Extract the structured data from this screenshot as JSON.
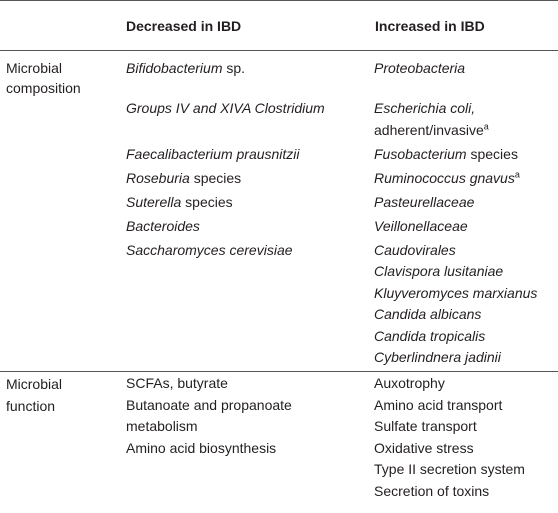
{
  "table": {
    "columns": [
      "Decreased in IBD",
      "Increased in IBD"
    ],
    "sections": [
      {
        "label": "Microbial composition",
        "rows": [
          {
            "decreased": [
              [
                {
                  "text": "Bifidobacterium",
                  "style": "italic"
                },
                {
                  "text": " sp.",
                  "style": "normal"
                }
              ]
            ],
            "increased": [
              [
                {
                  "text": "Proteobacteria",
                  "style": "italic"
                }
              ]
            ]
          },
          {
            "decreased": [
              [
                {
                  "text": "Groups IV and XIVA Clostridium",
                  "style": "italic"
                }
              ]
            ],
            "increased": [
              [
                {
                  "text": "Escherichia coli,",
                  "style": "italic"
                },
                {
                  "text": " adherent/invasive",
                  "style": "normal"
                },
                {
                  "text": "a",
                  "style": "sup"
                }
              ]
            ]
          },
          {
            "decreased": [
              [
                {
                  "text": "Faecalibacterium prausnitzii",
                  "style": "italic"
                }
              ]
            ],
            "increased": [
              [
                {
                  "text": "Fusobacterium",
                  "style": "italic"
                },
                {
                  "text": " species",
                  "style": "normal"
                }
              ]
            ]
          },
          {
            "decreased": [
              [
                {
                  "text": "Roseburia",
                  "style": "italic"
                },
                {
                  "text": " species",
                  "style": "normal"
                }
              ]
            ],
            "increased": [
              [
                {
                  "text": "Ruminococcus gnavus",
                  "style": "italic"
                },
                {
                  "text": "a",
                  "style": "sup"
                }
              ]
            ]
          },
          {
            "decreased": [
              [
                {
                  "text": "Suterella",
                  "style": "italic"
                },
                {
                  "text": " species",
                  "style": "normal"
                }
              ]
            ],
            "increased": [
              [
                {
                  "text": "Pasteurellaceae",
                  "style": "italic"
                }
              ]
            ]
          },
          {
            "decreased": [
              [
                {
                  "text": "Bacteroides",
                  "style": "italic"
                }
              ]
            ],
            "increased": [
              [
                {
                  "text": "Veillonellaceae",
                  "style": "italic"
                }
              ]
            ]
          },
          {
            "decreased": [
              [
                {
                  "text": "Saccharomyces cerevisiae",
                  "style": "italic"
                }
              ]
            ],
            "increased": [
              [
                {
                  "text": "Caudovirales",
                  "style": "italic"
                }
              ],
              [
                {
                  "text": "Clavispora lusitaniae",
                  "style": "italic"
                }
              ],
              [
                {
                  "text": "Kluyveromyces marxianus",
                  "style": "italic"
                }
              ],
              [
                {
                  "text": "Candida albicans",
                  "style": "italic"
                }
              ],
              [
                {
                  "text": "Candida tropicalis",
                  "style": "italic"
                }
              ],
              [
                {
                  "text": "Cyberlindnera jadinii",
                  "style": "italic"
                }
              ]
            ]
          }
        ]
      },
      {
        "label": "Microbial function",
        "rows": [
          {
            "decreased": [
              [
                {
                  "text": "SCFAs, butyrate",
                  "style": "normal"
                }
              ],
              [
                {
                  "text": "Butanoate and propanoate metabolism",
                  "style": "normal"
                }
              ],
              [
                {
                  "text": "Amino acid biosynthesis",
                  "style": "normal"
                }
              ]
            ],
            "increased": [
              [
                {
                  "text": "Auxotrophy",
                  "style": "normal"
                }
              ],
              [
                {
                  "text": "Amino acid transport",
                  "style": "normal"
                }
              ],
              [
                {
                  "text": "Sulfate transport",
                  "style": "normal"
                }
              ],
              [
                {
                  "text": "Oxidative stress",
                  "style": "normal"
                }
              ],
              [
                {
                  "text": "Type II secretion system",
                  "style": "normal"
                }
              ],
              [
                {
                  "text": "Secretion of toxins",
                  "style": "normal"
                }
              ]
            ]
          }
        ]
      }
    ]
  }
}
